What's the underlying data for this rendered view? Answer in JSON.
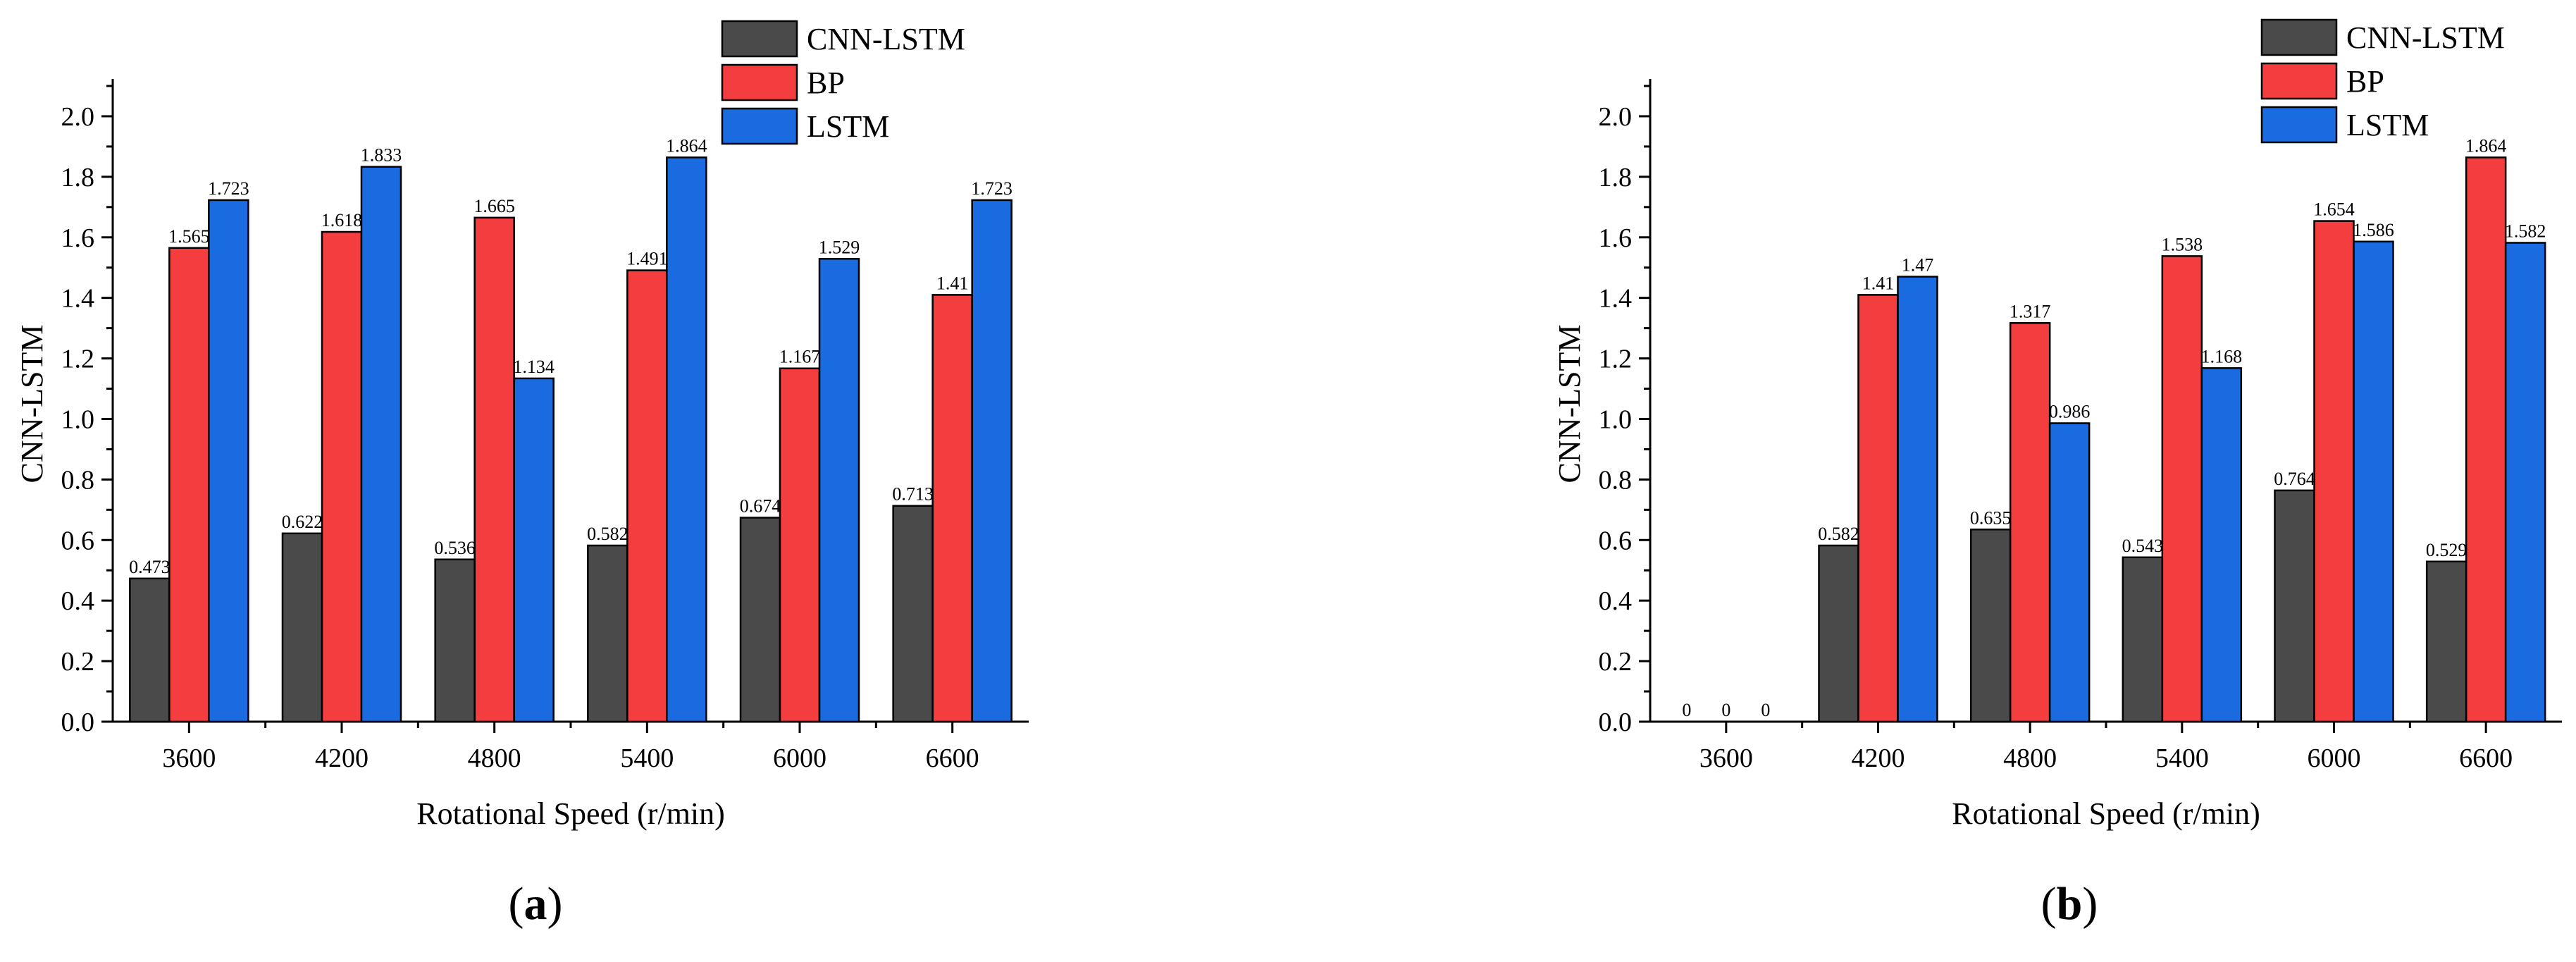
{
  "colors": {
    "CNN-LSTM": "#4a4a4a",
    "BP": "#f43d3f",
    "LSTM": "#1a6be0"
  },
  "chart_data": [
    {
      "type": "bar",
      "caption_letter": "a",
      "categories": [
        "3600",
        "4200",
        "4800",
        "5400",
        "6000",
        "6600"
      ],
      "series": [
        {
          "name": "CNN-LSTM",
          "values": [
            0.473,
            0.622,
            0.536,
            0.582,
            0.674,
            0.713
          ],
          "labels": [
            "0.473",
            "0.622",
            "0.536",
            "0.582",
            "0.674",
            "0.713"
          ]
        },
        {
          "name": "BP",
          "values": [
            1.565,
            1.618,
            1.665,
            1.491,
            1.167,
            1.41
          ],
          "labels": [
            "1.565",
            "1.618",
            "1.665",
            "1.491",
            "1.167",
            "1.41"
          ]
        },
        {
          "name": "LSTM",
          "values": [
            1.723,
            1.833,
            1.134,
            1.864,
            1.529,
            1.723
          ],
          "labels": [
            "1.723",
            "1.833",
            "1.134",
            "1.864",
            "1.529",
            "1.723"
          ]
        }
      ],
      "xlabel": "Rotational Speed (r/min)",
      "ylabel": "CNN-LSTM",
      "ylim": [
        0,
        2.1
      ],
      "yticks": [
        "0.0",
        "0.2",
        "0.4",
        "0.6",
        "0.8",
        "1.0",
        "1.2",
        "1.4",
        "1.6",
        "1.8",
        "2.0"
      ],
      "legend_position": "top-right",
      "grid": false
    },
    {
      "type": "bar",
      "caption_letter": "b",
      "categories": [
        "3600",
        "4200",
        "4800",
        "5400",
        "6000",
        "6600"
      ],
      "series": [
        {
          "name": "CNN-LSTM",
          "values": [
            0,
            0.582,
            0.635,
            0.543,
            0.764,
            0.529
          ],
          "labels": [
            "0",
            "0.582",
            "0.635",
            "0.543",
            "0.764",
            "0.529"
          ]
        },
        {
          "name": "BP",
          "values": [
            0,
            1.41,
            1.317,
            1.538,
            1.654,
            1.864
          ],
          "labels": [
            "0",
            "1.41",
            "1.317",
            "1.538",
            "1.654",
            "1.864"
          ]
        },
        {
          "name": "LSTM",
          "values": [
            0,
            1.47,
            0.986,
            1.168,
            1.586,
            1.582
          ],
          "labels": [
            "0",
            "1.47",
            "0.986",
            "1.168",
            "1.586",
            "1.582"
          ]
        }
      ],
      "xlabel": "Rotational Speed (r/min)",
      "ylabel": "CNN-LSTM",
      "ylim": [
        0,
        2.1
      ],
      "yticks": [
        "0.0",
        "0.2",
        "0.4",
        "0.6",
        "0.8",
        "1.0",
        "1.2",
        "1.4",
        "1.6",
        "1.8",
        "2.0"
      ],
      "legend_position": "top-right",
      "grid": false
    }
  ]
}
